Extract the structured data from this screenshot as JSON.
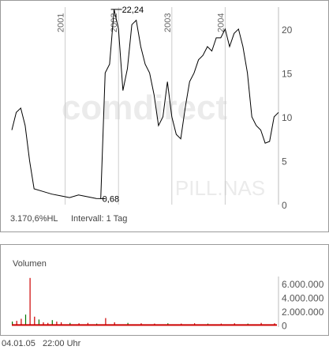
{
  "watermark": {
    "text": "comdirect",
    "symbol": "PILL.NAS"
  },
  "price_panel": {
    "info_left": "3.170,6%HL",
    "info_interval": "Intervall: 1 Tag"
  },
  "volume_panel": {
    "title": "Volumen"
  },
  "footer": {
    "date": "04.01.05",
    "time": "22:00 Uhr"
  },
  "colors": {
    "line": "#000000",
    "grid": "#cccccc",
    "vol_down": "#cc0000",
    "vol_up": "#007700",
    "vol_neutral": "#999999"
  },
  "chart_data": [
    {
      "type": "line",
      "title": "",
      "xlabel": "",
      "ylabel": "",
      "x_tick_labels": [
        "2001",
        "2002",
        "2003",
        "2004"
      ],
      "x_range": [
        "2000-01",
        "2005-01"
      ],
      "ylim": [
        0,
        22.5
      ],
      "y_ticks": [
        0,
        5,
        10,
        15,
        20
      ],
      "y_tick_labels": [
        "0",
        "5",
        "10",
        "15",
        "20"
      ],
      "annotations": [
        {
          "label": "22,24",
          "x": "2001-12",
          "y": 22.24,
          "kind": "high"
        },
        {
          "label": "0,68",
          "x": "2001-09",
          "y": 0.68,
          "kind": "low"
        }
      ],
      "series": [
        {
          "x": [
            "2000-01",
            "2000-02",
            "2000-03",
            "2000-04",
            "2000-05",
            "2000-06",
            "2000-08",
            "2000-10",
            "2000-12",
            "2001-02",
            "2001-04",
            "2001-06",
            "2001-08",
            "2001-09",
            "2001-10",
            "2001-11",
            "2001-12",
            "2002-01",
            "2002-02",
            "2002-03",
            "2002-04",
            "2002-05",
            "2002-06",
            "2002-07",
            "2002-08",
            "2002-09",
            "2002-10",
            "2002-11",
            "2002-12",
            "2003-01",
            "2003-02",
            "2003-03",
            "2003-04",
            "2003-05",
            "2003-06",
            "2003-07",
            "2003-08",
            "2003-09",
            "2003-10",
            "2003-11",
            "2003-12",
            "2004-01",
            "2004-02",
            "2004-03",
            "2004-04",
            "2004-05",
            "2004-06",
            "2004-07",
            "2004-08",
            "2004-09",
            "2004-10",
            "2004-11",
            "2004-12",
            "2005-01"
          ],
          "values": [
            8.5,
            10.5,
            11,
            9,
            5,
            1.8,
            1.5,
            1.2,
            1,
            0.8,
            1.1,
            0.9,
            0.7,
            0.68,
            15,
            16,
            22.24,
            20,
            13,
            15.5,
            20.5,
            21,
            18,
            16,
            15,
            12.5,
            9,
            10,
            14,
            10,
            8,
            7.5,
            11,
            14,
            15,
            16.5,
            17,
            18,
            17.5,
            19,
            19,
            20,
            18,
            19.5,
            20,
            18,
            15,
            10,
            9,
            8.5,
            7,
            7.2,
            10,
            10.5
          ]
        }
      ]
    },
    {
      "type": "bar",
      "title": "Volumen",
      "x_range": [
        "2000-01",
        "2005-01"
      ],
      "ylim": [
        -300000,
        7000000
      ],
      "y_ticks": [
        0,
        2000000,
        4000000,
        6000000
      ],
      "y_tick_labels": [
        "0",
        "2.000.000",
        "4.000.000",
        "6.000.000"
      ],
      "series": [
        {
          "name": "",
          "x": [
            "2000-01",
            "2000-02",
            "2000-03",
            "2000-04",
            "2000-05",
            "2000-06",
            "2000-07",
            "2000-08",
            "2000-09",
            "2000-10",
            "2000-11",
            "2000-12",
            "2001-02",
            "2001-04",
            "2001-06",
            "2001-08",
            "2001-10",
            "2001-12",
            "2002-03",
            "2002-06",
            "2002-09",
            "2002-12",
            "2003-03",
            "2003-06",
            "2003-09",
            "2003-12",
            "2004-03",
            "2004-06",
            "2004-09",
            "2004-12"
          ],
          "values": [
            500000,
            600000,
            900000,
            1500000,
            6800000,
            1200000,
            800000,
            400000,
            300000,
            700000,
            500000,
            400000,
            300000,
            250000,
            300000,
            200000,
            1000000,
            400000,
            300000,
            250000,
            200000,
            250000,
            200000,
            250000,
            200000,
            200000,
            250000,
            200000,
            300000,
            250000
          ]
        }
      ]
    }
  ]
}
